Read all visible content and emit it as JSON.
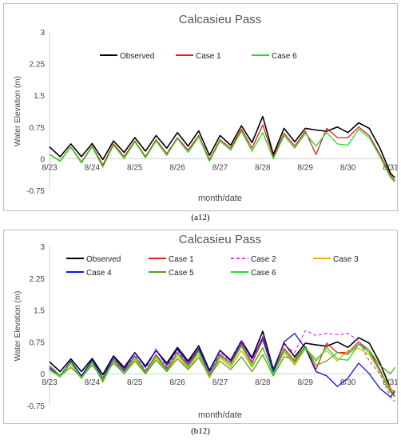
{
  "captions": [
    "(a12)",
    "(b12)"
  ],
  "chart_data": [
    {
      "type": "line",
      "title": "Calcasieu Pass",
      "xlabel": "month/date",
      "ylabel": "Water Elevation (m)",
      "ylim": [
        -0.75,
        3
      ],
      "yticks": [
        "3",
        "2.25",
        "1.5",
        "0.75",
        "0",
        "-0.75"
      ],
      "ytick_values": [
        3,
        2.25,
        1.5,
        0.75,
        0,
        -0.75
      ],
      "xlim": [
        0,
        8
      ],
      "xticks": [
        "8/23",
        "8/24",
        "8/25",
        "8/26",
        "8/27",
        "8/28",
        "8/29",
        "8/30",
        "8/31"
      ],
      "grid": false,
      "legend": "top-center",
      "series": [
        {
          "name": "Observed",
          "color": "#000000",
          "dash": "none",
          "x": [
            0,
            0.25,
            0.5,
            0.75,
            1,
            1.25,
            1.5,
            1.75,
            2,
            2.25,
            2.5,
            2.75,
            3,
            3.25,
            3.5,
            3.75,
            4,
            4.25,
            4.5,
            4.75,
            5,
            5.25,
            5.5,
            5.75,
            6,
            6.25,
            6.5,
            6.75,
            7,
            7.25,
            7.5,
            7.75,
            8,
            8.1
          ],
          "y": [
            0.28,
            0.05,
            0.35,
            0.05,
            0.36,
            -0.02,
            0.42,
            0.15,
            0.5,
            0.18,
            0.55,
            0.25,
            0.62,
            0.3,
            0.66,
            0.08,
            0.55,
            0.32,
            0.78,
            0.38,
            1.0,
            0.1,
            0.72,
            0.4,
            0.72,
            0.68,
            0.65,
            0.75,
            0.62,
            0.85,
            0.72,
            0.25,
            -0.35,
            -0.45
          ]
        },
        {
          "name": "Case 1",
          "color": "#e02020",
          "dash": "none",
          "x": [
            0,
            0.25,
            0.5,
            0.75,
            1,
            1.25,
            1.5,
            1.75,
            2,
            2.25,
            2.5,
            2.75,
            3,
            3.25,
            3.5,
            3.75,
            4,
            4.25,
            4.5,
            4.75,
            5,
            5.25,
            5.5,
            5.75,
            6,
            6.25,
            6.5,
            6.75,
            7,
            7.25,
            7.5,
            7.75,
            8,
            8.1
          ],
          "y": [
            0.1,
            -0.05,
            0.28,
            -0.08,
            0.3,
            -0.15,
            0.35,
            0.05,
            0.42,
            0.05,
            0.45,
            0.12,
            0.5,
            0.2,
            0.55,
            -0.02,
            0.45,
            0.25,
            0.7,
            0.25,
            0.8,
            0.05,
            0.6,
            0.3,
            0.65,
            0.1,
            0.72,
            0.5,
            0.5,
            0.75,
            0.55,
            0.1,
            -0.4,
            -0.52
          ]
        },
        {
          "name": "Case 6",
          "color": "#22dd22",
          "dash": "none",
          "x": [
            0,
            0.25,
            0.5,
            0.75,
            1,
            1.25,
            1.5,
            1.75,
            2,
            2.25,
            2.5,
            2.75,
            3,
            3.25,
            3.5,
            3.75,
            4,
            4.25,
            4.5,
            4.75,
            5,
            5.25,
            5.5,
            5.75,
            6,
            6.25,
            6.5,
            6.75,
            7,
            7.25,
            7.5,
            7.75,
            8,
            8.1
          ],
          "y": [
            0.1,
            -0.06,
            0.27,
            -0.1,
            0.28,
            -0.2,
            0.32,
            0.0,
            0.4,
            0.02,
            0.42,
            0.08,
            0.48,
            0.15,
            0.52,
            -0.06,
            0.42,
            0.2,
            0.65,
            0.18,
            0.62,
            0.0,
            0.55,
            0.25,
            0.6,
            0.3,
            0.62,
            0.35,
            0.32,
            0.7,
            0.5,
            0.05,
            -0.45,
            -0.55
          ]
        }
      ]
    },
    {
      "type": "line",
      "title": "Calcasieu Pass",
      "xlabel": "month/date",
      "ylabel": "Water Elevation (m)",
      "ylim": [
        -0.75,
        3
      ],
      "yticks": [
        "3",
        "2.25",
        "1.5",
        "0.75",
        "0",
        "-0.75"
      ],
      "ytick_values": [
        3,
        2.25,
        1.5,
        0.75,
        0,
        -0.75
      ],
      "xlim": [
        0,
        8
      ],
      "xticks": [
        "8/23",
        "8/24",
        "8/25",
        "8/26",
        "8/27",
        "8/28",
        "8/29",
        "8/30",
        "8/31"
      ],
      "grid": false,
      "legend": "top",
      "series": [
        {
          "name": "Observed",
          "color": "#000000",
          "dash": "none",
          "x": [
            0,
            0.25,
            0.5,
            0.75,
            1,
            1.25,
            1.5,
            1.75,
            2,
            2.25,
            2.5,
            2.75,
            3,
            3.25,
            3.5,
            3.75,
            4,
            4.25,
            4.5,
            4.75,
            5,
            5.25,
            5.5,
            5.75,
            6,
            6.25,
            6.5,
            6.75,
            7,
            7.25,
            7.5,
            7.75,
            8,
            8.1
          ],
          "y": [
            0.28,
            0.05,
            0.35,
            0.05,
            0.36,
            -0.02,
            0.42,
            0.15,
            0.5,
            0.18,
            0.55,
            0.25,
            0.62,
            0.3,
            0.66,
            0.08,
            0.55,
            0.32,
            0.78,
            0.38,
            1.0,
            0.1,
            0.72,
            0.4,
            0.72,
            0.68,
            0.65,
            0.75,
            0.62,
            0.85,
            0.72,
            0.25,
            -0.35,
            -0.45
          ]
        },
        {
          "name": "Case 1",
          "color": "#e02020",
          "dash": "none",
          "x": [
            0,
            0.25,
            0.5,
            0.75,
            1,
            1.25,
            1.5,
            1.75,
            2,
            2.25,
            2.5,
            2.75,
            3,
            3.25,
            3.5,
            3.75,
            4,
            4.25,
            4.5,
            4.75,
            5,
            5.25,
            5.5,
            5.75,
            6,
            6.25,
            6.5,
            6.75,
            7,
            7.25,
            7.5,
            7.75,
            8,
            8.1
          ],
          "y": [
            0.1,
            -0.05,
            0.28,
            -0.08,
            0.3,
            -0.15,
            0.35,
            0.05,
            0.42,
            0.05,
            0.45,
            0.12,
            0.5,
            0.2,
            0.55,
            -0.02,
            0.45,
            0.25,
            0.7,
            0.25,
            0.8,
            0.05,
            0.6,
            0.3,
            0.65,
            0.1,
            0.72,
            0.5,
            0.5,
            0.75,
            0.55,
            0.1,
            -0.4,
            -0.52
          ]
        },
        {
          "name": "Case 2",
          "color": "#e040e0",
          "dash": "4,3",
          "x": [
            0,
            0.25,
            0.5,
            0.75,
            1,
            1.25,
            1.5,
            1.75,
            2,
            2.25,
            2.5,
            2.75,
            3,
            3.25,
            3.5,
            3.75,
            4,
            4.25,
            4.5,
            4.75,
            5,
            5.25,
            5.5,
            5.75,
            6,
            6.25,
            6.5,
            6.75,
            7,
            7.25,
            7.5,
            7.75,
            8,
            8.1
          ],
          "y": [
            0.12,
            -0.04,
            0.3,
            -0.06,
            0.32,
            -0.12,
            0.38,
            0.08,
            0.45,
            0.08,
            0.6,
            0.15,
            0.55,
            0.22,
            0.6,
            0.0,
            0.5,
            0.3,
            0.78,
            0.3,
            0.88,
            0.08,
            0.7,
            0.5,
            1.02,
            0.9,
            0.95,
            0.92,
            0.95,
            0.78,
            0.3,
            0.0,
            -0.55,
            -0.65
          ]
        },
        {
          "name": "Case 3",
          "color": "#e8b400",
          "dash": "none",
          "x": [
            0,
            0.25,
            0.5,
            0.75,
            1,
            1.25,
            1.5,
            1.75,
            2,
            2.25,
            2.5,
            2.75,
            3,
            3.25,
            3.5,
            3.75,
            4,
            4.25,
            4.5,
            4.75,
            5,
            5.25,
            5.5,
            5.75,
            6,
            6.25,
            6.5,
            6.75,
            7,
            7.25,
            7.5,
            7.75,
            8,
            8.1
          ],
          "y": [
            0.08,
            -0.08,
            0.22,
            -0.12,
            0.25,
            -0.18,
            0.3,
            0.0,
            0.35,
            0.0,
            0.38,
            0.05,
            0.42,
            0.1,
            0.45,
            -0.1,
            0.38,
            0.15,
            0.55,
            0.15,
            0.6,
            0.0,
            0.5,
            0.2,
            0.6,
            0.35,
            0.55,
            0.3,
            0.55,
            0.6,
            0.45,
            0.05,
            -0.35,
            -0.45
          ]
        },
        {
          "name": "Case 4",
          "color": "#1010e0",
          "dash": "none",
          "x": [
            0,
            0.25,
            0.5,
            0.75,
            1,
            1.25,
            1.5,
            1.75,
            2,
            2.25,
            2.5,
            2.75,
            3,
            3.25,
            3.5,
            3.75,
            4,
            4.25,
            4.5,
            4.75,
            5,
            5.25,
            5.5,
            5.75,
            6,
            6.25,
            6.5,
            6.75,
            7,
            7.25,
            7.5,
            7.75,
            8,
            8.1
          ],
          "y": [
            0.15,
            -0.05,
            0.3,
            -0.05,
            0.33,
            -0.1,
            0.4,
            0.1,
            0.5,
            0.15,
            0.55,
            0.2,
            0.58,
            0.25,
            0.6,
            0.05,
            0.55,
            0.3,
            0.75,
            0.35,
            0.85,
            0.05,
            0.75,
            0.95,
            0.6,
            0.05,
            -0.05,
            -0.3,
            -0.1,
            0.25,
            0.0,
            -0.35,
            -0.55,
            -0.4
          ]
        },
        {
          "name": "Case 5",
          "color": "#5a9e2a",
          "dash": "none",
          "x": [
            0,
            0.25,
            0.5,
            0.75,
            1,
            1.25,
            1.5,
            1.75,
            2,
            2.25,
            2.5,
            2.75,
            3,
            3.25,
            3.5,
            3.75,
            4,
            4.25,
            4.5,
            4.75,
            5,
            5.25,
            5.5,
            5.75,
            6,
            6.25,
            6.5,
            6.75,
            7,
            7.25,
            7.5,
            7.75,
            8,
            8.1
          ],
          "y": [
            0.2,
            -0.05,
            0.15,
            -0.08,
            0.2,
            -0.1,
            0.25,
            0.0,
            0.3,
            0.0,
            0.32,
            0.05,
            0.35,
            0.1,
            0.38,
            -0.05,
            0.3,
            0.1,
            0.4,
            0.05,
            0.45,
            -0.05,
            0.4,
            0.35,
            0.65,
            0.2,
            0.3,
            0.5,
            0.45,
            0.7,
            0.55,
            0.2,
            0.0,
            0.15
          ]
        },
        {
          "name": "Case 6",
          "color": "#22dd22",
          "dash": "none",
          "x": [
            0,
            0.25,
            0.5,
            0.75,
            1,
            1.25,
            1.5,
            1.75,
            2,
            2.25,
            2.5,
            2.75,
            3,
            3.25,
            3.5,
            3.75,
            4,
            4.25,
            4.5,
            4.75,
            5,
            5.25,
            5.5,
            5.75,
            6,
            6.25,
            6.5,
            6.75,
            7,
            7.25,
            7.5,
            7.75,
            8,
            8.1
          ],
          "y": [
            0.1,
            -0.06,
            0.27,
            -0.1,
            0.28,
            -0.2,
            0.32,
            0.0,
            0.4,
            0.02,
            0.42,
            0.08,
            0.48,
            0.15,
            0.52,
            -0.06,
            0.42,
            0.2,
            0.65,
            0.18,
            0.62,
            0.0,
            0.55,
            0.25,
            0.6,
            0.3,
            0.62,
            0.35,
            0.32,
            0.7,
            0.5,
            0.05,
            -0.45,
            -0.55
          ]
        }
      ]
    }
  ]
}
